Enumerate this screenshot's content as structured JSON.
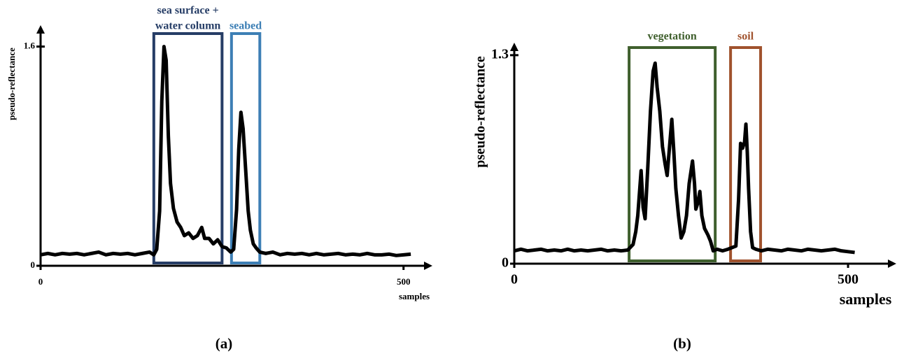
{
  "chart_data": [
    {
      "type": "line",
      "y_label": "pseudo-reflectance",
      "x_label": "samples",
      "caption": "(a)",
      "xlim": [
        0,
        534
      ],
      "ylim": [
        0,
        1.7
      ],
      "xticks": [
        0,
        500
      ],
      "yticks": [
        0,
        1.6
      ],
      "series": [
        {
          "color": "#000000",
          "x": [
            0,
            10,
            20,
            30,
            40,
            50,
            60,
            70,
            80,
            90,
            100,
            110,
            120,
            130,
            140,
            150,
            156,
            160,
            164,
            167,
            170,
            173,
            176,
            179,
            183,
            188,
            193,
            198,
            204,
            210,
            216,
            222,
            226,
            232,
            238,
            244,
            250,
            256,
            262,
            266,
            270,
            273,
            276,
            279,
            283,
            286,
            289,
            293,
            297,
            302,
            310,
            320,
            330,
            340,
            350,
            360,
            370,
            380,
            390,
            400,
            410,
            420,
            430,
            440,
            450,
            460,
            470,
            480,
            490,
            500,
            510
          ],
          "values": [
            0.08,
            0.09,
            0.08,
            0.09,
            0.085,
            0.09,
            0.08,
            0.09,
            0.1,
            0.08,
            0.09,
            0.085,
            0.09,
            0.08,
            0.09,
            0.1,
            0.08,
            0.12,
            0.4,
            1.2,
            1.6,
            1.5,
            0.95,
            0.6,
            0.42,
            0.32,
            0.28,
            0.22,
            0.24,
            0.2,
            0.22,
            0.28,
            0.2,
            0.2,
            0.16,
            0.19,
            0.14,
            0.13,
            0.1,
            0.12,
            0.41,
            0.85,
            1.12,
            1.0,
            0.66,
            0.4,
            0.26,
            0.16,
            0.13,
            0.1,
            0.09,
            0.1,
            0.08,
            0.09,
            0.085,
            0.09,
            0.08,
            0.09,
            0.08,
            0.085,
            0.09,
            0.08,
            0.085,
            0.08,
            0.09,
            0.08,
            0.08,
            0.085,
            0.075,
            0.08,
            0.085
          ]
        }
      ],
      "regions": [
        {
          "label": [
            "sea surface +",
            "water column"
          ],
          "color": "#263d66",
          "x": [
            156,
            250
          ]
        },
        {
          "label": [
            "seabed"
          ],
          "color": "#3d7fb5",
          "x": [
            263,
            302
          ]
        }
      ]
    },
    {
      "type": "line",
      "y_label": "pseudo-reflectance",
      "x_label": "samples",
      "caption": "(b)",
      "xlim": [
        0,
        566
      ],
      "ylim": [
        0,
        1.33
      ],
      "xticks": [
        0,
        500
      ],
      "yticks": [
        0,
        1.3
      ],
      "series": [
        {
          "color": "#000000",
          "x": [
            0,
            10,
            20,
            30,
            40,
            50,
            60,
            70,
            80,
            90,
            100,
            110,
            120,
            130,
            140,
            150,
            160,
            170,
            178,
            182,
            185,
            190,
            193,
            196,
            200,
            204,
            208,
            211,
            214,
            218,
            222,
            226,
            229,
            232,
            236,
            239,
            242,
            246,
            250,
            254,
            258,
            262,
            267,
            270,
            272,
            275,
            278,
            281,
            285,
            290,
            294,
            298,
            304,
            312,
            320,
            326,
            332,
            336,
            339,
            342,
            345,
            347,
            349,
            351,
            354,
            357,
            362,
            370,
            380,
            390,
            400,
            410,
            420,
            430,
            440,
            450,
            460,
            470,
            480,
            490,
            500,
            510
          ],
          "values": [
            0.08,
            0.09,
            0.08,
            0.085,
            0.09,
            0.08,
            0.085,
            0.08,
            0.09,
            0.08,
            0.085,
            0.08,
            0.085,
            0.09,
            0.08,
            0.085,
            0.08,
            0.085,
            0.12,
            0.2,
            0.3,
            0.58,
            0.35,
            0.28,
            0.6,
            0.95,
            1.2,
            1.25,
            1.1,
            0.95,
            0.73,
            0.62,
            0.55,
            0.7,
            0.9,
            0.7,
            0.47,
            0.3,
            0.16,
            0.2,
            0.3,
            0.5,
            0.64,
            0.5,
            0.34,
            0.38,
            0.45,
            0.3,
            0.22,
            0.18,
            0.14,
            0.08,
            0.09,
            0.08,
            0.09,
            0.1,
            0.11,
            0.4,
            0.75,
            0.72,
            0.76,
            0.87,
            0.7,
            0.47,
            0.2,
            0.1,
            0.09,
            0.08,
            0.09,
            0.085,
            0.08,
            0.09,
            0.085,
            0.08,
            0.09,
            0.085,
            0.08,
            0.085,
            0.09,
            0.08,
            0.075,
            0.07
          ]
        }
      ],
      "regions": [
        {
          "label": [
            "vegetation"
          ],
          "color": "#3f5f2d",
          "x": [
            172,
            301
          ]
        },
        {
          "label": [
            "soil"
          ],
          "color": "#a0522d",
          "x": [
            324,
            369
          ]
        }
      ]
    }
  ]
}
